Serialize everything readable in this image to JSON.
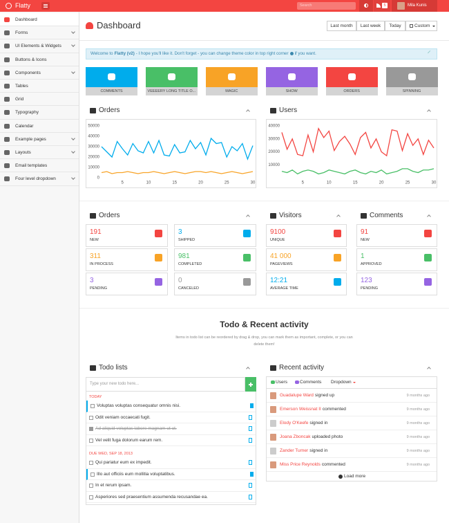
{
  "topbar": {
    "brand": "Flatty",
    "search_placeholder": "Search",
    "badge": "5",
    "user": "Mila Kunis"
  },
  "sidebar": {
    "items": [
      {
        "label": "Dashboard",
        "submenu": false
      },
      {
        "label": "Forms",
        "submenu": true
      },
      {
        "label": "UI Elements & Widgets",
        "submenu": true
      },
      {
        "label": "Buttons & Icons",
        "submenu": false
      },
      {
        "label": "Components",
        "submenu": true
      },
      {
        "label": "Tables",
        "submenu": false
      },
      {
        "label": "Grid",
        "submenu": false
      },
      {
        "label": "Typography",
        "submenu": false
      },
      {
        "label": "Calendar",
        "submenu": false
      },
      {
        "label": "Example pages",
        "submenu": true
      },
      {
        "label": "Layouts",
        "submenu": true
      },
      {
        "label": "Email templates",
        "submenu": false
      },
      {
        "label": "Four level dropdown",
        "submenu": true
      }
    ]
  },
  "header": {
    "title": "Dashboard",
    "ranges": [
      "Last month",
      "Last week",
      "Today",
      "Custom"
    ]
  },
  "alert": {
    "lead": "Welcome to",
    "brand": "Flatty (v2)",
    "text": "- I hope you'll like it. Don't forget - you can change theme color in top right corner",
    "tail": "if you want."
  },
  "tiles": [
    {
      "label": "COMMENTS",
      "color": "#00acec"
    },
    {
      "label": "VEEEERY LONG TITLE O...",
      "color": "#49bf67"
    },
    {
      "label": "MAGIC",
      "color": "#f8a326"
    },
    {
      "label": "SHOW",
      "color": "#9564e2"
    },
    {
      "label": "ORDERS",
      "color": "#f34541"
    },
    {
      "label": "SPINNING",
      "color": "#999999"
    }
  ],
  "chart_data": [
    {
      "type": "line",
      "title": "Orders",
      "x": [
        1,
        2,
        3,
        4,
        5,
        6,
        7,
        8,
        9,
        10,
        11,
        12,
        13,
        14,
        15,
        16,
        17,
        18,
        19,
        20,
        21,
        22,
        23,
        24,
        25,
        26,
        27,
        28,
        29,
        30
      ],
      "xlim": [
        1,
        30
      ],
      "xticks": [
        5,
        10,
        15,
        20,
        25,
        30
      ],
      "ylim": [
        0,
        50000
      ],
      "yticks": [
        0,
        10000,
        20000,
        30000,
        40000,
        50000
      ],
      "series": [
        {
          "color": "#00acec",
          "values": [
            30000,
            25000,
            20000,
            35000,
            28000,
            22000,
            33000,
            26000,
            24000,
            35000,
            24000,
            36000,
            22000,
            21000,
            32000,
            24000,
            25000,
            36000,
            28000,
            34000,
            22000,
            38000,
            33000,
            34000,
            20000,
            30000,
            26000,
            33000,
            18000,
            31000
          ]
        },
        {
          "color": "#f8a326",
          "values": [
            5000,
            6000,
            4000,
            5000,
            5000,
            6000,
            5000,
            4000,
            5000,
            5000,
            6000,
            5000,
            4000,
            5000,
            6000,
            5000,
            4000,
            5000,
            6000,
            6000,
            5000,
            6000,
            5000,
            4000,
            5000,
            6000,
            5000,
            4000,
            5000,
            6000
          ]
        }
      ]
    },
    {
      "type": "line",
      "title": "Users",
      "x": [
        1,
        2,
        3,
        4,
        5,
        6,
        7,
        8,
        9,
        10,
        11,
        12,
        13,
        14,
        15,
        16,
        17,
        18,
        19,
        20,
        21,
        22,
        23,
        24,
        25,
        26,
        27,
        28,
        29,
        30
      ],
      "xlim": [
        1,
        30
      ],
      "xticks": [
        5,
        10,
        15,
        20,
        25,
        30
      ],
      "ylim": [
        0,
        40000
      ],
      "yticks": [
        10000,
        20000,
        30000,
        40000
      ],
      "series": [
        {
          "color": "#f34541",
          "values": [
            35000,
            22000,
            30000,
            18000,
            17000,
            33000,
            20000,
            38000,
            31000,
            36000,
            21000,
            28000,
            32000,
            26000,
            18000,
            31000,
            35000,
            23000,
            30000,
            20000,
            17000,
            37000,
            36000,
            21000,
            34000,
            25000,
            30000,
            18000,
            29000,
            23000
          ]
        },
        {
          "color": "#49bf67",
          "values": [
            5000,
            4000,
            6000,
            3000,
            5000,
            6000,
            5000,
            3000,
            4000,
            6000,
            5000,
            4000,
            3000,
            5000,
            6000,
            4000,
            3000,
            5000,
            4000,
            6000,
            3000,
            4000,
            5000,
            7000,
            7000,
            5000,
            4000,
            6000,
            6000,
            7000
          ]
        }
      ]
    }
  ],
  "stat_panels": [
    {
      "title": "Orders",
      "columns": 2,
      "items": [
        {
          "value": "191",
          "label": "NEW",
          "color": "#f34541"
        },
        {
          "value": "3",
          "label": "SHIPPED",
          "color": "#00acec"
        },
        {
          "value": "311",
          "label": "IN PROCESS",
          "color": "#f8a326"
        },
        {
          "value": "981",
          "label": "COMPLETED",
          "color": "#49bf67"
        },
        {
          "value": "3",
          "label": "PENDING",
          "color": "#9564e2"
        },
        {
          "value": "0",
          "label": "CANCELED",
          "color": "#999999"
        }
      ]
    },
    {
      "title": "Visitors",
      "columns": 1,
      "items": [
        {
          "value": "9100",
          "label": "UNIQUE",
          "color": "#f34541"
        },
        {
          "value": "41 000",
          "label": "PAGEVIEWS",
          "color": "#f8a326"
        },
        {
          "value": "12:21",
          "label": "AVERAGE TIME",
          "color": "#00acec"
        }
      ]
    },
    {
      "title": "Comments",
      "columns": 1,
      "items": [
        {
          "value": "91",
          "label": "NEW",
          "color": "#f34541"
        },
        {
          "value": "1",
          "label": "APPROVED",
          "color": "#49bf67"
        },
        {
          "value": "123",
          "label": "PENDING",
          "color": "#9564e2"
        }
      ]
    }
  ],
  "section": {
    "title": "Todo & Recent activity",
    "subtitle": "Items in todo list can be reordered by drag & drop, you can mark them as important, complete, or you can delete them!"
  },
  "todo": {
    "title": "Todo lists",
    "placeholder": "Type your new todo here...",
    "groups": [
      {
        "heading": "TODAY",
        "items": [
          {
            "text": "Voluptas voluptas consequatur omnis nisi.",
            "done": false,
            "important": true
          },
          {
            "text": "Odit veniam occaecati fugit.",
            "done": false,
            "important": false
          },
          {
            "text": "Ad aliquid voluptas labore magnam ut ut.",
            "done": true,
            "important": false
          },
          {
            "text": "Vel velit fuga dolorum earum rem.",
            "done": false,
            "important": false
          }
        ]
      },
      {
        "heading": "DUE WED, SEP 18, 2013",
        "items": [
          {
            "text": "Qui pariatur eum ex impedit.",
            "done": false,
            "important": false
          },
          {
            "text": "Illo aut officiis eum mollitia voluptatibus.",
            "done": false,
            "important": true
          },
          {
            "text": "In et rerum ipsam.",
            "done": false,
            "important": false
          },
          {
            "text": "Asperiores sed praesentium assumenda recusandae ea.",
            "done": false,
            "important": false
          }
        ]
      }
    ]
  },
  "activity": {
    "title": "Recent activity",
    "tabs": [
      "Users",
      "Comments",
      "Dropdown"
    ],
    "items": [
      {
        "name": "Guadalupe Ward",
        "action": "signed up",
        "time": "9 months ago"
      },
      {
        "name": "Emerson Weissnat II",
        "action": "commented",
        "time": "9 months ago"
      },
      {
        "name": "Elody O'Keefe",
        "action": "signed in",
        "time": "9 months ago"
      },
      {
        "name": "Joana Zboncak",
        "action": "uploaded photo",
        "time": "9 months ago"
      },
      {
        "name": "Zander Turner",
        "action": "signed in",
        "time": "9 months ago"
      },
      {
        "name": "Miss Price Reynolds",
        "action": "commented",
        "time": "9 months ago"
      }
    ],
    "more": "Load more"
  }
}
